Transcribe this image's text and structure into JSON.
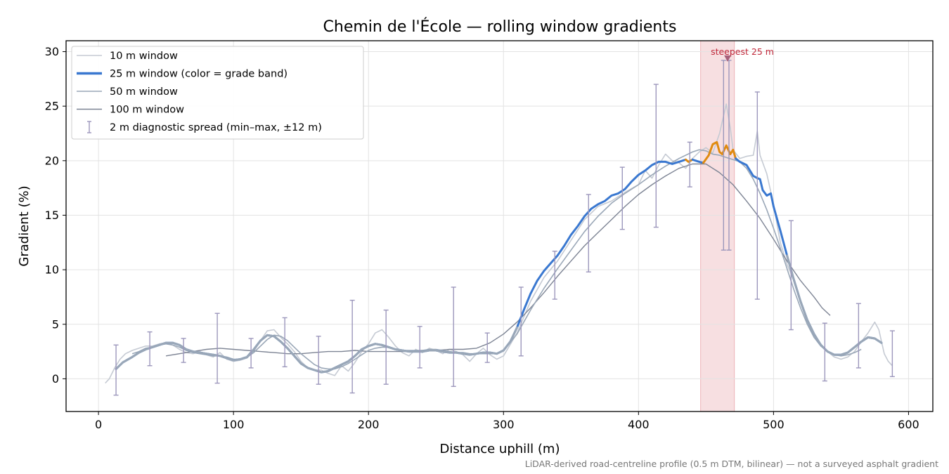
{
  "chart_data": {
    "type": "line",
    "title": "Chemin de l'École — rolling window gradients",
    "xlabel": "Distance uphill (m)",
    "ylabel": "Gradient (%)",
    "xlim": [
      -24,
      618
    ],
    "ylim": [
      -3,
      31
    ],
    "xticks": [
      0,
      100,
      200,
      300,
      400,
      500,
      600
    ],
    "yticks": [
      0,
      5,
      10,
      15,
      20,
      25,
      30
    ],
    "grid": true,
    "legend_position": "top-left",
    "footnote": "LiDAR-derived road-centreline profile (0.5 m DTM, bilinear) — not a surveyed asphalt gradient",
    "colors": {
      "w10": "#c5cad3",
      "w25_normal": "#3a78d0",
      "w25_steep": "#e08a10",
      "w50": "#9aa7b7",
      "w100": "#7d8494",
      "errorbar": "#9c97bc",
      "highlight": "#e8a4aa",
      "annotation": "#c0283a"
    },
    "legend": [
      {
        "label": "10 m window",
        "key": "w10"
      },
      {
        "label": "25 m window (color = grade band)",
        "key": "w25"
      },
      {
        "label": "50 m window",
        "key": "w50"
      },
      {
        "label": "100 m window",
        "key": "w100"
      },
      {
        "label": "2 m diagnostic spread (min–max, ±12 m)",
        "key": "spread"
      }
    ],
    "highlight_region": {
      "x0": 446,
      "x1": 471
    },
    "annotation": {
      "text": "steepest 25 m",
      "x": 466,
      "y": 29.4
    },
    "series": [
      {
        "name": "10 m window",
        "key": "w10",
        "x": [
          5,
          8,
          12,
          16,
          20,
          25,
          30,
          35,
          40,
          45,
          50,
          55,
          60,
          65,
          70,
          75,
          80,
          85,
          90,
          95,
          100,
          105,
          110,
          115,
          120,
          125,
          130,
          135,
          140,
          145,
          150,
          155,
          160,
          165,
          170,
          175,
          180,
          185,
          190,
          195,
          200,
          205,
          210,
          215,
          220,
          225,
          230,
          235,
          240,
          245,
          250,
          255,
          260,
          265,
          270,
          275,
          280,
          285,
          290,
          295,
          300,
          310,
          320,
          330,
          340,
          350,
          360,
          370,
          380,
          390,
          400,
          405,
          410,
          415,
          420,
          425,
          430,
          435,
          440,
          445,
          450,
          455,
          460,
          465,
          468,
          470,
          475,
          480,
          485,
          488,
          490,
          495,
          500,
          505,
          510,
          515,
          520,
          525,
          530,
          535,
          540,
          545,
          550,
          555,
          560,
          565,
          570,
          575,
          578,
          582,
          585,
          588
        ],
        "y": [
          -0.4,
          0.0,
          1.0,
          1.8,
          2.3,
          2.6,
          2.8,
          3.0,
          3.0,
          3.2,
          3.3,
          3.1,
          2.7,
          2.4,
          2.3,
          2.5,
          2.2,
          2.0,
          2.4,
          1.8,
          1.6,
          1.7,
          1.9,
          2.5,
          3.5,
          4.4,
          4.5,
          3.8,
          3.2,
          2.5,
          1.6,
          1.0,
          0.8,
          0.8,
          0.5,
          0.3,
          1.2,
          0.7,
          1.5,
          2.5,
          3.2,
          4.2,
          4.5,
          3.8,
          3.0,
          2.4,
          2.1,
          2.7,
          2.4,
          2.8,
          2.6,
          2.3,
          2.7,
          2.5,
          2.2,
          1.6,
          2.3,
          2.8,
          2.2,
          1.8,
          2.1,
          4.2,
          7.1,
          9.3,
          10.8,
          12.7,
          14.6,
          15.8,
          16.3,
          17.1,
          17.8,
          19.1,
          18.4,
          19.6,
          20.6,
          20.0,
          19.8,
          19.3,
          20.2,
          20.8,
          21.2,
          20.7,
          22.5,
          25.2,
          23.0,
          21.0,
          20.2,
          20.4,
          20.5,
          22.7,
          20.5,
          18.8,
          16.0,
          12.5,
          10.5,
          9.0,
          7.0,
          5.2,
          4.0,
          3.2,
          2.5,
          2.0,
          1.8,
          2.0,
          2.5,
          3.4,
          4.2,
          5.2,
          4.5,
          2.3,
          1.6,
          1.2
        ]
      },
      {
        "name": "25 m window",
        "key": "w25",
        "x": [
          13,
          18,
          25,
          30,
          35,
          40,
          45,
          50,
          55,
          60,
          65,
          70,
          75,
          80,
          85,
          90,
          95,
          100,
          105,
          110,
          115,
          120,
          125,
          130,
          135,
          140,
          145,
          150,
          155,
          160,
          165,
          170,
          175,
          180,
          185,
          190,
          195,
          200,
          205,
          210,
          215,
          220,
          225,
          230,
          235,
          240,
          245,
          250,
          255,
          260,
          265,
          270,
          275,
          280,
          285,
          290,
          295,
          300,
          305,
          310,
          315,
          320,
          325,
          330,
          335,
          340,
          345,
          350,
          355,
          360,
          365,
          370,
          375,
          380,
          385,
          390,
          395,
          400,
          405,
          410,
          415,
          420,
          425,
          430,
          435,
          437,
          440,
          445,
          448,
          452,
          455,
          458,
          460,
          462,
          465,
          468,
          470,
          472,
          475,
          480,
          485,
          488,
          490,
          492,
          495,
          498,
          500,
          505,
          510,
          515,
          520,
          525,
          530,
          535,
          540,
          545,
          550,
          555,
          560,
          565,
          570,
          575,
          580
        ],
        "y": [
          0.9,
          1.5,
          2.0,
          2.4,
          2.7,
          2.9,
          3.1,
          3.3,
          3.3,
          3.1,
          2.7,
          2.5,
          2.4,
          2.3,
          2.2,
          2.1,
          1.9,
          1.7,
          1.8,
          2.0,
          2.7,
          3.5,
          4.0,
          3.9,
          3.4,
          2.8,
          2.1,
          1.4,
          1.0,
          0.8,
          0.6,
          0.7,
          1.0,
          1.3,
          1.6,
          2.1,
          2.7,
          3.0,
          3.2,
          3.1,
          2.9,
          2.7,
          2.6,
          2.5,
          2.5,
          2.5,
          2.6,
          2.6,
          2.5,
          2.4,
          2.4,
          2.3,
          2.2,
          2.3,
          2.4,
          2.4,
          2.3,
          2.6,
          3.4,
          4.7,
          6.3,
          7.8,
          9.0,
          9.9,
          10.6,
          11.3,
          12.2,
          13.2,
          14.0,
          14.9,
          15.6,
          16.0,
          16.3,
          16.8,
          17.0,
          17.4,
          18.1,
          18.7,
          19.1,
          19.6,
          19.9,
          19.9,
          19.7,
          19.9,
          20.1,
          19.9,
          20.1,
          19.9,
          19.8,
          20.5,
          21.5,
          21.7,
          20.8,
          20.6,
          21.4,
          20.6,
          21.0,
          20.2,
          19.9,
          19.6,
          18.6,
          18.4,
          18.3,
          17.3,
          16.8,
          17.0,
          15.8,
          13.6,
          11.3,
          9.1,
          7.1,
          5.4,
          4.1,
          3.1,
          2.5,
          2.2,
          2.2,
          2.4,
          2.9,
          3.4,
          3.8,
          3.7,
          3.3
        ],
        "steep_x_range": [
          [
            434,
            437
          ],
          [
            448,
            471
          ]
        ]
      },
      {
        "name": "50 m window",
        "key": "w50",
        "x": [
          25,
          30,
          35,
          40,
          45,
          50,
          55,
          60,
          65,
          70,
          75,
          80,
          85,
          90,
          95,
          100,
          105,
          110,
          115,
          120,
          125,
          130,
          135,
          140,
          145,
          150,
          155,
          160,
          165,
          170,
          175,
          180,
          185,
          190,
          195,
          200,
          205,
          210,
          215,
          220,
          225,
          230,
          235,
          240,
          245,
          250,
          255,
          260,
          265,
          270,
          275,
          280,
          285,
          290,
          295,
          300,
          310,
          320,
          330,
          340,
          350,
          360,
          370,
          380,
          390,
          400,
          410,
          420,
          430,
          440,
          445,
          450,
          455,
          460,
          465,
          470,
          475,
          480,
          485,
          490,
          495,
          500,
          505,
          510,
          515,
          520,
          525,
          530,
          535,
          540,
          545,
          550,
          555,
          560,
          565
        ],
        "y": [
          2.3,
          2.5,
          2.8,
          2.9,
          3.1,
          3.2,
          3.1,
          2.9,
          2.6,
          2.4,
          2.3,
          2.2,
          2.1,
          2.1,
          2.0,
          1.8,
          1.8,
          2.0,
          2.4,
          3.0,
          3.6,
          4.0,
          3.9,
          3.5,
          2.9,
          2.3,
          1.8,
          1.3,
          1.0,
          0.9,
          0.9,
          1.1,
          1.4,
          1.8,
          2.2,
          2.6,
          2.8,
          2.9,
          2.9,
          2.7,
          2.6,
          2.6,
          2.6,
          2.6,
          2.7,
          2.7,
          2.6,
          2.5,
          2.4,
          2.4,
          2.3,
          2.3,
          2.3,
          2.3,
          2.3,
          2.6,
          4.1,
          6.3,
          8.3,
          10.1,
          11.8,
          13.5,
          14.9,
          16.1,
          17.0,
          17.8,
          18.7,
          19.5,
          20.2,
          20.8,
          21.0,
          20.9,
          20.6,
          20.5,
          20.3,
          20.1,
          19.9,
          19.3,
          18.3,
          17.0,
          15.5,
          13.8,
          12.0,
          10.1,
          8.2,
          6.5,
          5.0,
          3.8,
          3.0,
          2.5,
          2.2,
          2.1,
          2.2,
          2.4,
          2.7
        ]
      },
      {
        "name": "100 m window",
        "key": "w100",
        "x": [
          50,
          60,
          70,
          80,
          90,
          100,
          110,
          120,
          130,
          140,
          150,
          160,
          170,
          180,
          190,
          200,
          210,
          220,
          230,
          240,
          250,
          260,
          270,
          280,
          290,
          300,
          310,
          320,
          330,
          340,
          350,
          360,
          370,
          380,
          390,
          400,
          410,
          420,
          430,
          440,
          450,
          460,
          470,
          480,
          490,
          500,
          510,
          520,
          530,
          536,
          542
        ],
        "y": [
          2.1,
          2.3,
          2.5,
          2.7,
          2.8,
          2.7,
          2.6,
          2.5,
          2.4,
          2.3,
          2.3,
          2.4,
          2.5,
          2.5,
          2.6,
          2.5,
          2.5,
          2.5,
          2.5,
          2.6,
          2.6,
          2.7,
          2.7,
          2.8,
          3.3,
          4.1,
          5.2,
          6.5,
          7.9,
          9.4,
          10.8,
          12.2,
          13.4,
          14.6,
          15.8,
          16.9,
          17.8,
          18.6,
          19.3,
          19.7,
          19.7,
          18.9,
          17.8,
          16.3,
          14.7,
          12.8,
          10.8,
          9.0,
          7.5,
          6.5,
          5.8
        ]
      }
    ],
    "spread": {
      "name": "2 m diagnostic spread (min–max, ±12 m)",
      "x": [
        13,
        38,
        63,
        88,
        113,
        138,
        163,
        188,
        213,
        238,
        263,
        288,
        313,
        338,
        363,
        388,
        413,
        438,
        463,
        467,
        488,
        513,
        538,
        563,
        588
      ],
      "y": [
        1.0,
        2.7,
        2.6,
        2.8,
        2.3,
        3.3,
        1.6,
        2.9,
        3.3,
        2.9,
        3.8,
        2.9,
        5.2,
        9.5,
        13.4,
        16.5,
        20.5,
        19.6,
        20.5,
        20.5,
        16.8,
        9.5,
        2.5,
        3.9,
        2.3
      ],
      "min": [
        -1.5,
        1.2,
        1.5,
        -0.4,
        1.0,
        1.1,
        -0.5,
        -1.3,
        -0.5,
        1.0,
        -0.7,
        1.5,
        2.1,
        7.3,
        9.8,
        13.7,
        13.9,
        17.6,
        11.8,
        11.8,
        7.3,
        4.5,
        -0.2,
        1.0,
        0.2
      ],
      "max": [
        3.1,
        4.3,
        3.7,
        6.0,
        3.7,
        5.6,
        3.9,
        7.2,
        6.3,
        4.8,
        8.4,
        4.2,
        8.4,
        11.7,
        16.9,
        19.4,
        27.0,
        21.7,
        29.2,
        29.2,
        26.3,
        14.5,
        5.1,
        6.9,
        4.4
      ]
    }
  }
}
